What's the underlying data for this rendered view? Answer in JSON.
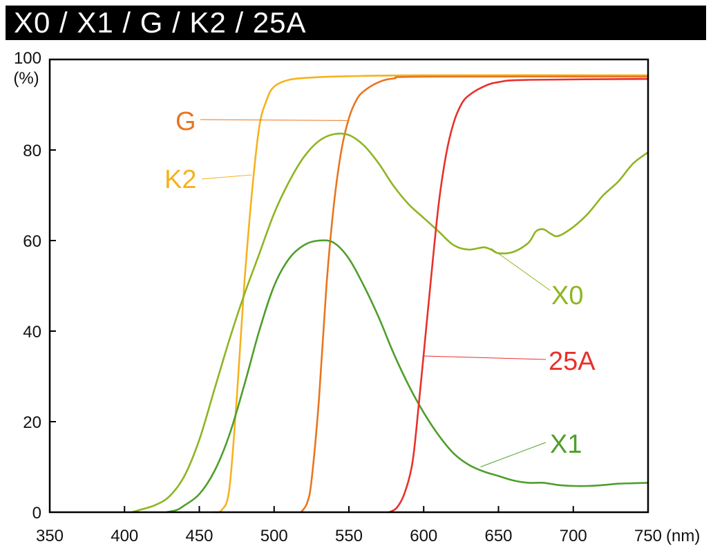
{
  "chart_data": {
    "type": "line",
    "title": "X0 / X1 / G / K2 / 25A",
    "xlabel": "(nm)",
    "ylabel": "(%)",
    "xlim": [
      350,
      750
    ],
    "ylim": [
      0,
      100
    ],
    "x_ticks": [
      350,
      400,
      450,
      500,
      550,
      600,
      650,
      700,
      750
    ],
    "y_ticks": [
      0,
      20,
      40,
      60,
      80,
      100
    ],
    "x_tick_labels": [
      "350",
      "400",
      "450",
      "500",
      "550",
      "600",
      "650",
      "700",
      "750"
    ],
    "y_tick_labels": [
      "0",
      "20",
      "40",
      "60",
      "80",
      "100"
    ],
    "grid": false,
    "legend": "inline labels",
    "series": [
      {
        "name": "K2",
        "color": "#F5B21E",
        "points": [
          [
            460,
            0
          ],
          [
            465,
            0.5
          ],
          [
            470,
            5
          ],
          [
            475,
            25
          ],
          [
            480,
            50
          ],
          [
            485,
            70
          ],
          [
            490,
            85
          ],
          [
            495,
            91
          ],
          [
            500,
            94
          ],
          [
            510,
            95.5
          ],
          [
            525,
            96
          ],
          [
            550,
            96.3
          ],
          [
            600,
            96.5
          ],
          [
            750,
            96.5
          ]
        ],
        "label": {
          "text": "K2",
          "x": 485,
          "y": 74.5
        }
      },
      {
        "name": "G",
        "color": "#E8751E",
        "points": [
          [
            518,
            0
          ],
          [
            522,
            2
          ],
          [
            525,
            7
          ],
          [
            530,
            25
          ],
          [
            535,
            50
          ],
          [
            540,
            68
          ],
          [
            545,
            80
          ],
          [
            550,
            87
          ],
          [
            555,
            91
          ],
          [
            560,
            93
          ],
          [
            570,
            95
          ],
          [
            580,
            95.8
          ],
          [
            600,
            96.2
          ],
          [
            750,
            96.2
          ]
        ],
        "label": {
          "text": "G",
          "x": 550,
          "y": 86.5
        }
      },
      {
        "name": "X0",
        "color": "#8DB520",
        "points": [
          [
            405,
            0
          ],
          [
            410,
            0.5
          ],
          [
            420,
            1.5
          ],
          [
            430,
            3.5
          ],
          [
            440,
            8
          ],
          [
            450,
            16
          ],
          [
            460,
            27
          ],
          [
            470,
            38
          ],
          [
            480,
            48
          ],
          [
            490,
            57
          ],
          [
            500,
            66
          ],
          [
            510,
            73
          ],
          [
            520,
            78.5
          ],
          [
            530,
            82
          ],
          [
            540,
            83.5
          ],
          [
            550,
            83.3
          ],
          [
            560,
            81
          ],
          [
            570,
            77
          ],
          [
            580,
            72
          ],
          [
            590,
            68
          ],
          [
            600,
            65
          ],
          [
            610,
            62
          ],
          [
            620,
            59
          ],
          [
            630,
            58
          ],
          [
            640,
            58.5
          ],
          [
            645,
            58
          ],
          [
            650,
            57.2
          ],
          [
            660,
            57.5
          ],
          [
            670,
            59.5
          ],
          [
            675,
            62
          ],
          [
            680,
            62.5
          ],
          [
            685,
            61.5
          ],
          [
            690,
            61
          ],
          [
            700,
            63
          ],
          [
            710,
            66
          ],
          [
            720,
            70
          ],
          [
            730,
            73
          ],
          [
            740,
            77
          ],
          [
            750,
            79.5
          ]
        ],
        "label": {
          "text": "X0",
          "x": 645,
          "y": 58.3
        }
      },
      {
        "name": "X1",
        "color": "#4E9E2B",
        "points": [
          [
            428,
            0
          ],
          [
            435,
            0.5
          ],
          [
            440,
            1.5
          ],
          [
            450,
            4
          ],
          [
            460,
            9
          ],
          [
            470,
            17
          ],
          [
            480,
            28
          ],
          [
            490,
            40
          ],
          [
            500,
            50
          ],
          [
            510,
            56
          ],
          [
            520,
            59
          ],
          [
            530,
            60
          ],
          [
            540,
            59.5
          ],
          [
            550,
            56
          ],
          [
            560,
            50
          ],
          [
            570,
            43
          ],
          [
            580,
            35
          ],
          [
            590,
            28
          ],
          [
            600,
            22
          ],
          [
            610,
            17
          ],
          [
            620,
            13
          ],
          [
            630,
            10.5
          ],
          [
            640,
            9
          ],
          [
            650,
            8
          ],
          [
            660,
            7
          ],
          [
            670,
            6.5
          ],
          [
            680,
            6.5
          ],
          [
            690,
            6
          ],
          [
            700,
            5.8
          ],
          [
            710,
            5.8
          ],
          [
            720,
            6
          ],
          [
            730,
            6.3
          ],
          [
            740,
            6.4
          ],
          [
            750,
            6.5
          ]
        ],
        "label": {
          "text": "X1",
          "x": 638,
          "y": 10
        }
      },
      {
        "name": "25A",
        "color": "#E8302A",
        "points": [
          [
            577,
            0
          ],
          [
            582,
            1
          ],
          [
            587,
            4
          ],
          [
            592,
            10
          ],
          [
            595,
            18
          ],
          [
            600,
            35
          ],
          [
            605,
            52
          ],
          [
            610,
            68
          ],
          [
            615,
            79
          ],
          [
            620,
            86
          ],
          [
            625,
            90
          ],
          [
            630,
            92
          ],
          [
            640,
            94
          ],
          [
            650,
            95
          ],
          [
            670,
            95.5
          ],
          [
            750,
            95.7
          ]
        ],
        "label": {
          "text": "25A",
          "x": 600,
          "y": 34.5
        }
      }
    ]
  }
}
